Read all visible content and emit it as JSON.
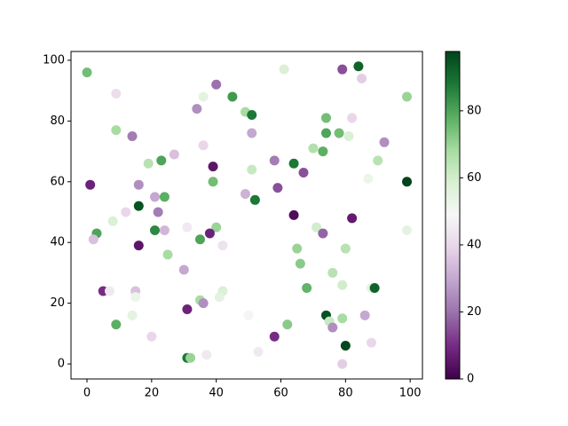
{
  "chart_data": {
    "type": "scatter",
    "x": [
      0,
      9,
      40,
      45,
      36,
      61,
      79,
      84,
      85,
      99,
      34,
      49,
      51,
      74,
      82,
      9,
      14,
      51,
      74,
      78,
      81,
      92,
      36,
      70,
      73,
      27,
      90,
      19,
      23,
      58,
      64,
      39,
      67,
      51,
      87,
      99,
      1,
      16,
      39,
      59,
      49,
      21,
      24,
      52,
      16,
      12,
      22,
      8,
      64,
      82,
      24,
      21,
      40,
      31,
      71,
      99,
      3,
      2,
      38,
      73,
      35,
      16,
      42,
      65,
      80,
      25,
      66,
      30,
      76,
      79,
      68,
      88,
      89,
      5,
      7,
      15,
      15,
      42,
      41,
      35,
      36,
      31,
      14,
      50,
      74,
      86,
      9,
      62,
      75,
      76,
      79,
      58,
      20,
      53,
      37,
      80,
      88,
      31,
      32,
      79
    ],
    "y": [
      96,
      89,
      92,
      88,
      88,
      97,
      97,
      98,
      94,
      88,
      84,
      83,
      82,
      81,
      81,
      77,
      75,
      76,
      76,
      76,
      75,
      73,
      72,
      71,
      70,
      69,
      67,
      66,
      67,
      67,
      66,
      65,
      63,
      64,
      61,
      60,
      59,
      59,
      60,
      58,
      56,
      55,
      55,
      54,
      52,
      50,
      50,
      47,
      49,
      48,
      44,
      44,
      45,
      45,
      45,
      44,
      43,
      41,
      43,
      43,
      41,
      39,
      39,
      38,
      38,
      36,
      33,
      31,
      30,
      26,
      25,
      25,
      25,
      24,
      24,
      24,
      22,
      24,
      22,
      21,
      20,
      18,
      16,
      16,
      16,
      16,
      13,
      13,
      14,
      12,
      15,
      9,
      9,
      4,
      3,
      6,
      7,
      2,
      2,
      0
    ],
    "color_values": [
      75,
      42,
      20,
      82,
      55,
      58,
      15,
      92,
      38,
      70,
      25,
      68,
      88,
      75,
      40,
      68,
      22,
      30,
      80,
      75,
      58,
      25,
      40,
      66,
      78,
      35,
      65,
      65,
      80,
      22,
      88,
      5,
      15,
      62,
      52,
      98,
      8,
      25,
      75,
      15,
      32,
      30,
      78,
      88,
      95,
      40,
      22,
      58,
      3,
      6,
      33,
      85,
      70,
      45,
      60,
      55,
      80,
      35,
      8,
      18,
      80,
      5,
      43,
      70,
      65,
      68,
      72,
      30,
      65,
      60,
      77,
      55,
      92,
      10,
      45,
      35,
      52,
      58,
      55,
      68,
      25,
      8,
      55,
      50,
      95,
      30,
      78,
      72,
      62,
      25,
      68,
      10,
      40,
      45,
      45,
      97,
      40,
      88,
      70,
      38
    ],
    "colormap": [
      "#40004b",
      "#762a83",
      "#9970ab",
      "#c2a5cf",
      "#e7d4e8",
      "#f7f7f7",
      "#d9f0d3",
      "#a6dba0",
      "#5aae61",
      "#1b7837",
      "#00441b"
    ],
    "xlim": [
      -4.95,
      103.8
    ],
    "ylim": [
      -4.95,
      102.9
    ],
    "xticks": [
      0,
      20,
      40,
      60,
      80,
      100
    ],
    "yticks": [
      0,
      20,
      40,
      60,
      80,
      100
    ],
    "clim": [
      0,
      97.7
    ],
    "cticks": [
      0,
      20,
      40,
      60,
      80
    ]
  }
}
